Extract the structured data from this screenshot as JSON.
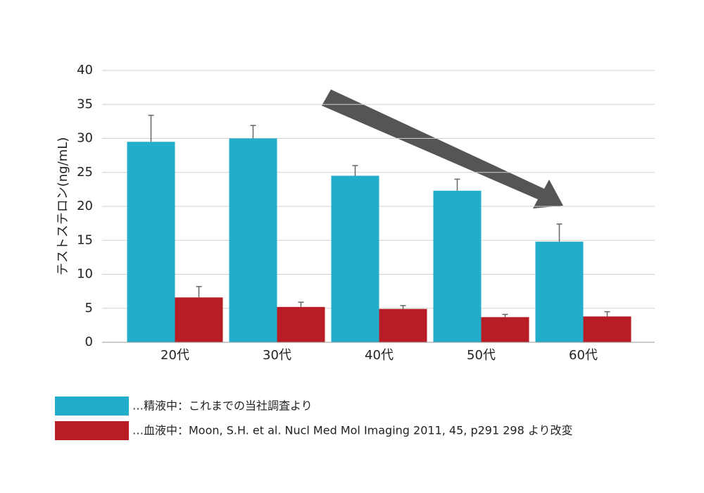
{
  "chart_data": {
    "type": "bar",
    "y_label": "テストステロン(ng/mL)",
    "categories": [
      "20代",
      "30代",
      "40代",
      "50代",
      "60代"
    ],
    "series": [
      {
        "name": "…精液中：これまでの当社調査より",
        "color": "#22aecb",
        "values": [
          29.5,
          30.0,
          24.5,
          22.3,
          14.8
        ],
        "errors": [
          3.9,
          1.9,
          1.5,
          1.7,
          2.6
        ]
      },
      {
        "name": "…血液中：Moon, S.H. et al. Nucl Med Mol Imaging 2011, 45, p291 298 より改変",
        "color": "#b81c24",
        "values": [
          6.6,
          5.2,
          4.9,
          3.7,
          3.8
        ],
        "errors": [
          1.6,
          0.7,
          0.5,
          0.4,
          0.7
        ]
      }
    ],
    "ylim": [
      0,
      40
    ],
    "yticks": [
      0,
      5,
      10,
      15,
      20,
      25,
      30,
      35,
      40
    ],
    "grid": true
  }
}
